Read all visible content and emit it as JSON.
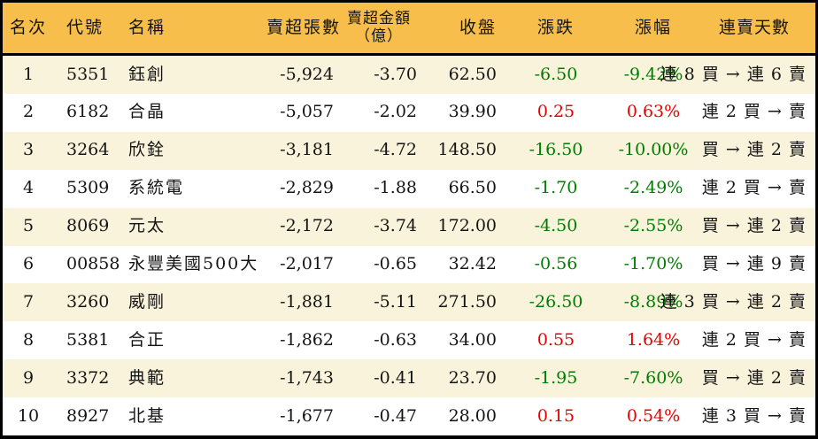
{
  "colors": {
    "header_bg": "#F7BE4C",
    "row_odd_bg": "#FAF3DC",
    "row_even_bg": "#FFFFFF",
    "up": "#E80000",
    "down": "#007D00",
    "text": "#141414",
    "border": "#000000"
  },
  "chart_data": {
    "type": "table",
    "columns": [
      {
        "key": "rank",
        "label": "名次"
      },
      {
        "key": "code",
        "label": "代號"
      },
      {
        "key": "name",
        "label": "名稱"
      },
      {
        "key": "sell_volume",
        "label": "賣超張數"
      },
      {
        "key": "sell_amount",
        "label": "賣超金額",
        "label2": "（億）"
      },
      {
        "key": "close",
        "label": "收盤"
      },
      {
        "key": "change",
        "label": "漲跌"
      },
      {
        "key": "change_pct",
        "label": "漲幅"
      },
      {
        "key": "streak",
        "label": "連賣天數"
      }
    ],
    "rows": [
      {
        "rank": "1",
        "code": "5351",
        "name": "鈺創",
        "sell_volume": "-5,924",
        "sell_amount": "-3.70",
        "close": "62.50",
        "change": "-6.50",
        "change_pct": "-9.42%",
        "streak": "連 8 買 → 連 6 賣",
        "trend": "down"
      },
      {
        "rank": "2",
        "code": "6182",
        "name": "合晶",
        "sell_volume": "-5,057",
        "sell_amount": "-2.02",
        "close": "39.90",
        "change": "0.25",
        "change_pct": "0.63%",
        "streak": "連 2 買 → 賣",
        "trend": "up"
      },
      {
        "rank": "3",
        "code": "3264",
        "name": "欣銓",
        "sell_volume": "-3,181",
        "sell_amount": "-4.72",
        "close": "148.50",
        "change": "-16.50",
        "change_pct": "-10.00%",
        "streak": "買 → 連 2 賣",
        "trend": "down"
      },
      {
        "rank": "4",
        "code": "5309",
        "name": "系統電",
        "sell_volume": "-2,829",
        "sell_amount": "-1.88",
        "close": "66.50",
        "change": "-1.70",
        "change_pct": "-2.49%",
        "streak": "連 2 買 → 賣",
        "trend": "down"
      },
      {
        "rank": "5",
        "code": "8069",
        "name": "元太",
        "sell_volume": "-2,172",
        "sell_amount": "-3.74",
        "close": "172.00",
        "change": "-4.50",
        "change_pct": "-2.55%",
        "streak": "買 → 連 2 賣",
        "trend": "down"
      },
      {
        "rank": "6",
        "code": "00858",
        "name": "永豐美國500大",
        "sell_volume": "-2,017",
        "sell_amount": "-0.65",
        "close": "32.42",
        "change": "-0.56",
        "change_pct": "-1.70%",
        "streak": "買 → 連 9 賣",
        "trend": "down"
      },
      {
        "rank": "7",
        "code": "3260",
        "name": "威剛",
        "sell_volume": "-1,881",
        "sell_amount": "-5.11",
        "close": "271.50",
        "change": "-26.50",
        "change_pct": "-8.89%",
        "streak": "連 3 買 → 連 2 賣",
        "trend": "down"
      },
      {
        "rank": "8",
        "code": "5381",
        "name": "合正",
        "sell_volume": "-1,862",
        "sell_amount": "-0.63",
        "close": "34.00",
        "change": "0.55",
        "change_pct": "1.64%",
        "streak": "連 2 買 → 賣",
        "trend": "up"
      },
      {
        "rank": "9",
        "code": "3372",
        "name": "典範",
        "sell_volume": "-1,743",
        "sell_amount": "-0.41",
        "close": "23.70",
        "change": "-1.95",
        "change_pct": "-7.60%",
        "streak": "買 → 連 2 賣",
        "trend": "down"
      },
      {
        "rank": "10",
        "code": "8927",
        "name": "北基",
        "sell_volume": "-1,677",
        "sell_amount": "-0.47",
        "close": "28.00",
        "change": "0.15",
        "change_pct": "0.54%",
        "streak": "連 3 買 → 賣",
        "trend": "up"
      }
    ]
  }
}
